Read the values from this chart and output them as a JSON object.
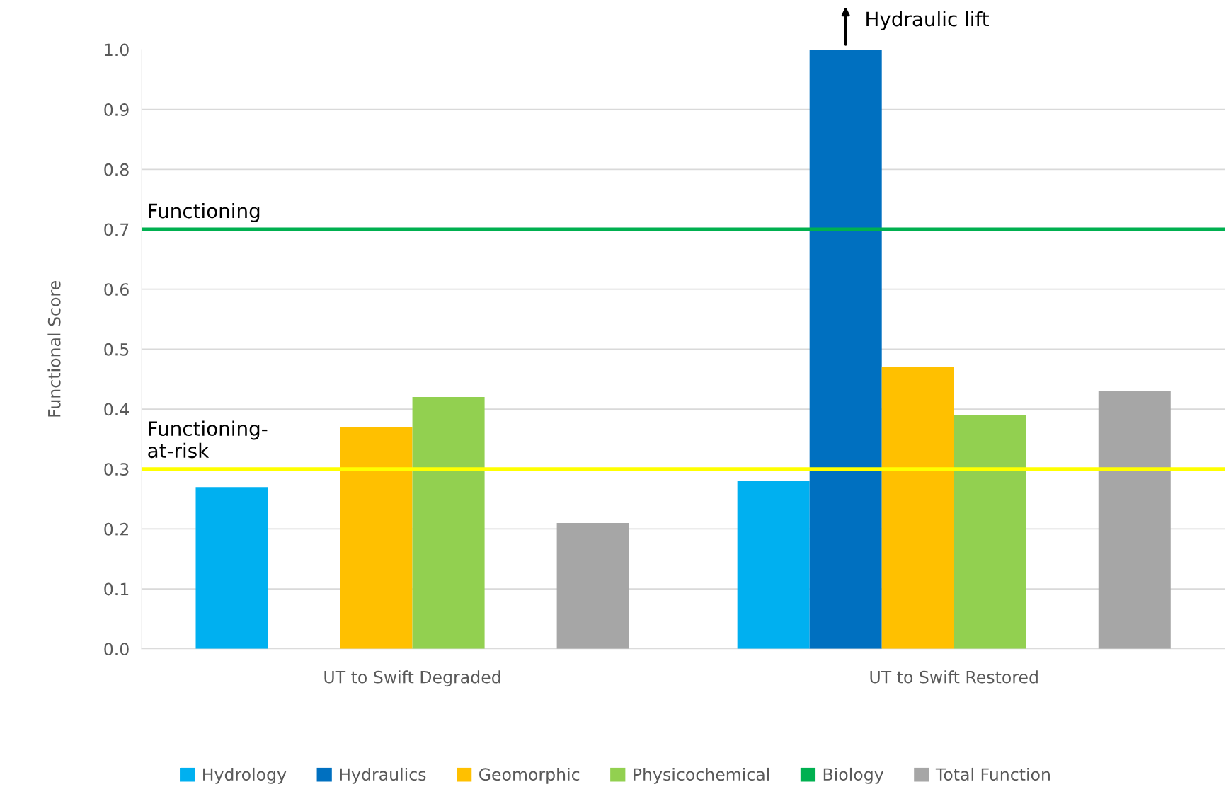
{
  "chart_data": {
    "type": "bar",
    "ylabel": "Functional Score",
    "categories": [
      "UT to Swift Degraded",
      "UT to Swift Restored"
    ],
    "series": [
      {
        "name": "Hydrology",
        "color": "#00b0f0",
        "values": [
          0.27,
          0.28
        ]
      },
      {
        "name": "Hydraulics",
        "color": "#0070c0",
        "values": [
          null,
          1.0
        ]
      },
      {
        "name": "Geomorphic",
        "color": "#ffc000",
        "values": [
          0.37,
          0.47
        ]
      },
      {
        "name": "Physicochemical",
        "color": "#92d050",
        "values": [
          0.42,
          0.39
        ]
      },
      {
        "name": "Biology",
        "color": "#00b050",
        "values": [
          null,
          null
        ]
      },
      {
        "name": "Total Function",
        "color": "#a6a6a6",
        "values": [
          0.21,
          0.43
        ]
      }
    ],
    "ylim": [
      0,
      1.0
    ],
    "yticks": [
      {
        "value": 0,
        "label": "0.0"
      },
      0.1,
      0.2,
      0.3,
      0.4,
      0.5,
      0.6,
      0.7,
      0.8,
      0.9,
      {
        "value": 1,
        "label": "1.0"
      }
    ],
    "grid": "y",
    "legend": "bottom",
    "ref_lines": [
      {
        "axis": "y",
        "value": 0.7,
        "label": "Functioning",
        "color": "#00b050"
      },
      {
        "axis": "y",
        "value": 0.3,
        "label": "Functioning-\nat-risk",
        "color": "#ffff00"
      }
    ],
    "annotations": [
      "Hydraulic lift"
    ]
  }
}
